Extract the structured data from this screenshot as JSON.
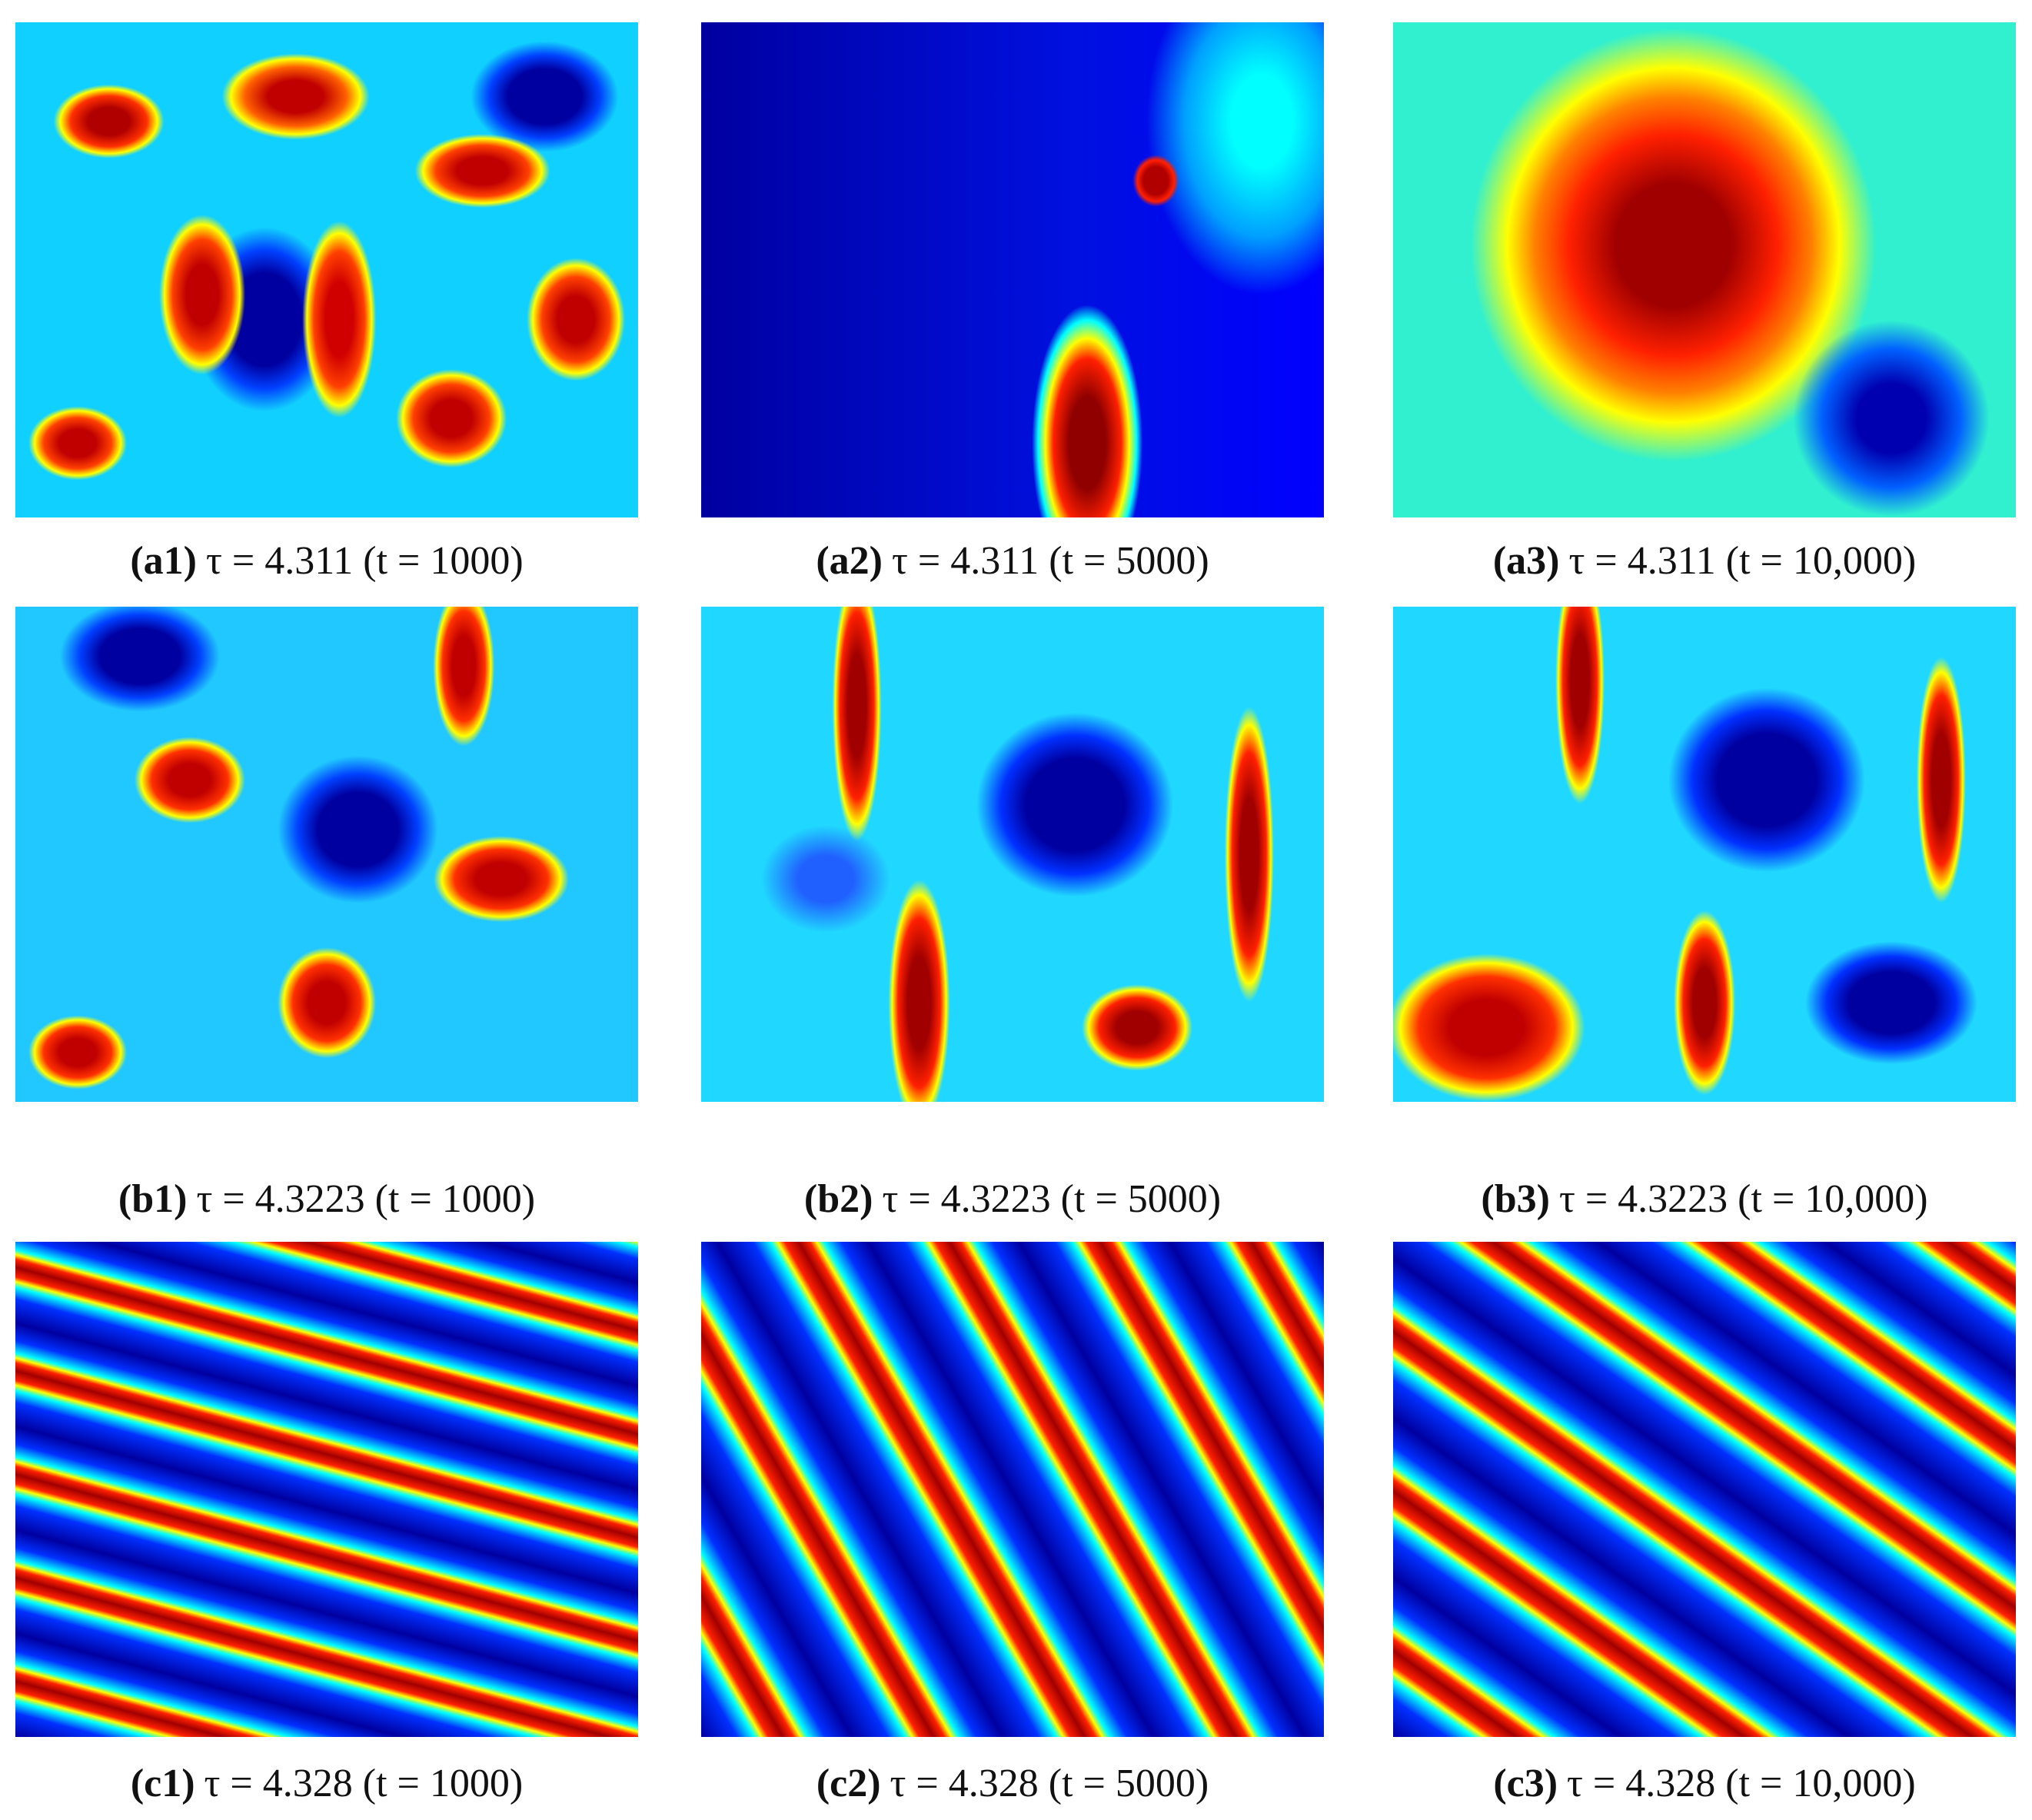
{
  "panels": [
    {
      "label": "(a1)",
      "caption": "τ = 4.311 (t = 1000)"
    },
    {
      "label": "(a2)",
      "caption": "τ = 4.311 (t = 5000)"
    },
    {
      "label": "(a3)",
      "caption": "τ = 4.311 (t = 10,000)"
    },
    {
      "label": "(b1)",
      "caption": "τ = 4.3223 (t = 1000)"
    },
    {
      "label": "(b2)",
      "caption": "τ = 4.3223 (t = 5000)"
    },
    {
      "label": "(b3)",
      "caption": "τ = 4.3223 (t = 10,000)"
    },
    {
      "label": "(c1)",
      "caption": "τ = 4.328 (t = 1000)"
    },
    {
      "label": "(c2)",
      "caption": "τ = 4.328 (t = 5000)"
    },
    {
      "label": "(c3)",
      "caption": "τ = 4.328 (t = 10,000)"
    }
  ]
}
